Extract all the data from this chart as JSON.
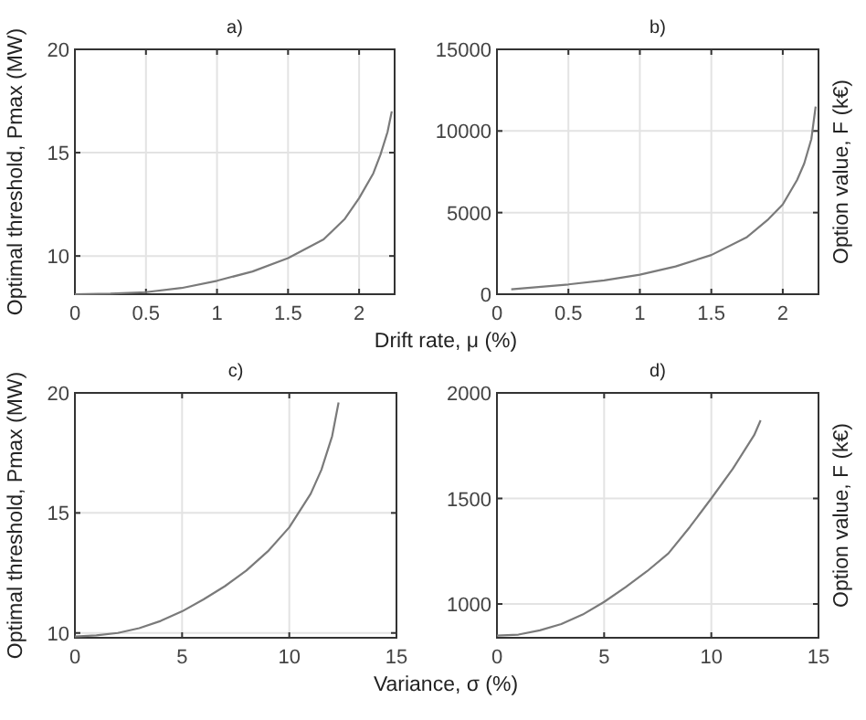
{
  "chart_data": [
    {
      "type": "line",
      "title": "a)",
      "xlabel": "Drift rate, μ (%)",
      "ylabel": "Optimal threshold, Pmax (MW)",
      "xlim": [
        0,
        2.25
      ],
      "ylim": [
        8.15,
        20
      ],
      "xticks": [
        0,
        0.5,
        1,
        1.5,
        2
      ],
      "yticks": [
        10,
        15,
        20
      ],
      "grid": true,
      "series": [
        {
          "color": "#7a7a7a",
          "x": [
            0,
            0.25,
            0.5,
            0.75,
            1,
            1.25,
            1.5,
            1.75,
            1.9,
            2,
            2.1,
            2.15,
            2.2,
            2.23
          ],
          "values": [
            8.15,
            8.18,
            8.25,
            8.45,
            8.8,
            9.25,
            9.9,
            10.8,
            11.8,
            12.8,
            14,
            14.9,
            16,
            17
          ]
        }
      ]
    },
    {
      "type": "line",
      "title": "b)",
      "ylabel": "Option value, F (k€)",
      "xlim": [
        0,
        2.25
      ],
      "ylim": [
        0,
        15000
      ],
      "xticks": [
        0,
        0.5,
        1,
        1.5,
        2
      ],
      "yticks": [
        0,
        5000,
        10000,
        15000
      ],
      "grid": true,
      "series": [
        {
          "color": "#7a7a7a",
          "x": [
            0.1,
            0.5,
            0.75,
            1,
            1.25,
            1.5,
            1.75,
            1.9,
            2,
            2.1,
            2.15,
            2.2,
            2.23
          ],
          "values": [
            300,
            600,
            850,
            1200,
            1700,
            2400,
            3500,
            4600,
            5500,
            7000,
            8000,
            9500,
            11500
          ]
        }
      ]
    },
    {
      "type": "line",
      "title": "c)",
      "xlabel": "Variance, σ (%)",
      "ylabel": "Optimal threshold, Pmax (MW)",
      "xlim": [
        0,
        15
      ],
      "ylim": [
        9.8,
        20
      ],
      "xticks": [
        0,
        5,
        10,
        15
      ],
      "yticks": [
        10,
        15,
        20
      ],
      "grid": true,
      "series": [
        {
          "color": "#7a7a7a",
          "x": [
            0,
            1,
            2,
            3,
            4,
            5,
            6,
            7,
            8,
            9,
            10,
            11,
            11.5,
            12,
            12.3
          ],
          "values": [
            9.85,
            9.9,
            10,
            10.2,
            10.5,
            10.9,
            11.4,
            11.95,
            12.6,
            13.4,
            14.4,
            15.8,
            16.8,
            18.2,
            19.6
          ]
        }
      ]
    },
    {
      "type": "line",
      "title": "d)",
      "ylabel": "Option value, F (k€)",
      "xlim": [
        0,
        15
      ],
      "ylim": [
        840,
        2000
      ],
      "xticks": [
        0,
        5,
        10,
        15
      ],
      "yticks": [
        1000,
        1500,
        2000
      ],
      "grid": true,
      "series": [
        {
          "color": "#7a7a7a",
          "x": [
            0,
            1,
            2,
            3,
            4,
            5,
            6,
            7,
            8,
            9,
            10,
            11,
            12,
            12.3
          ],
          "values": [
            850,
            855,
            875,
            905,
            950,
            1010,
            1080,
            1155,
            1240,
            1365,
            1500,
            1640,
            1800,
            1870
          ]
        }
      ]
    }
  ]
}
